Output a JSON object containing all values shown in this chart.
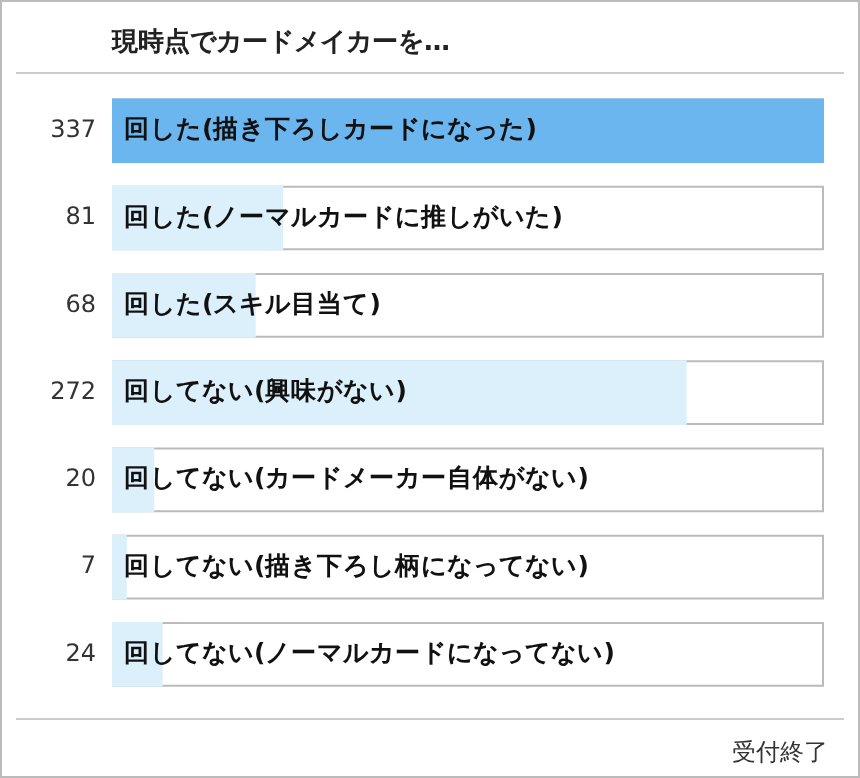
{
  "chart_data": {
    "type": "bar",
    "orientation": "horizontal",
    "title": "現時点でカードメイカーを…",
    "categories": [
      "回した(描き下ろしカードになった)",
      "回した(ノーマルカードに推しがいた)",
      "回した(スキル目当て)",
      "回してない(興味がない)",
      "回してない(カードメーカー自体がない)",
      "回してない(描き下ろし柄になってない)",
      "回してない(ノーマルカードになってない)"
    ],
    "values": [
      337,
      81,
      68,
      272,
      20,
      7,
      24
    ],
    "colors": [
      "#6cb6f0",
      "#dcf0fb",
      "#dcf0fb",
      "#dcf0fb",
      "#dcf0fb",
      "#dcf0fb",
      "#dcf0fb"
    ],
    "xlim": [
      0,
      337
    ],
    "tick_labels": false,
    "grid": false,
    "legend": false,
    "data_labels": true,
    "annotations": [
      "受付終了"
    ]
  }
}
